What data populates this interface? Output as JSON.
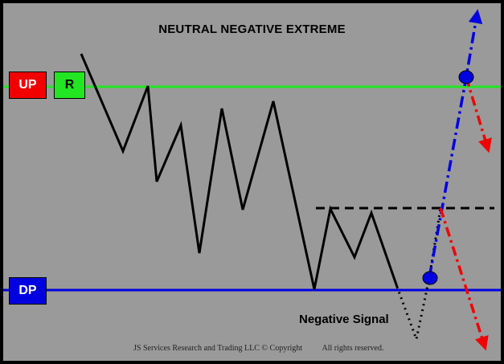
{
  "title": "NEUTRAL NEGATIVE EXTREME",
  "labels": {
    "up": "UP",
    "r": "R",
    "dp": "DP",
    "signal": "Negative Signal"
  },
  "footer": {
    "copyright": "JS Services Research and Trading LLC © Copyright",
    "rights": "All rights reserved."
  },
  "colors": {
    "background": "#9a9a9a",
    "up_line": "#22e622",
    "dp_line": "#0000e0",
    "up_box": "#f20000",
    "r_box": "#22e622",
    "bullish_arrow": "#0000e0",
    "bearish_arrow": "#f20000",
    "marker": "#0000e0"
  }
}
